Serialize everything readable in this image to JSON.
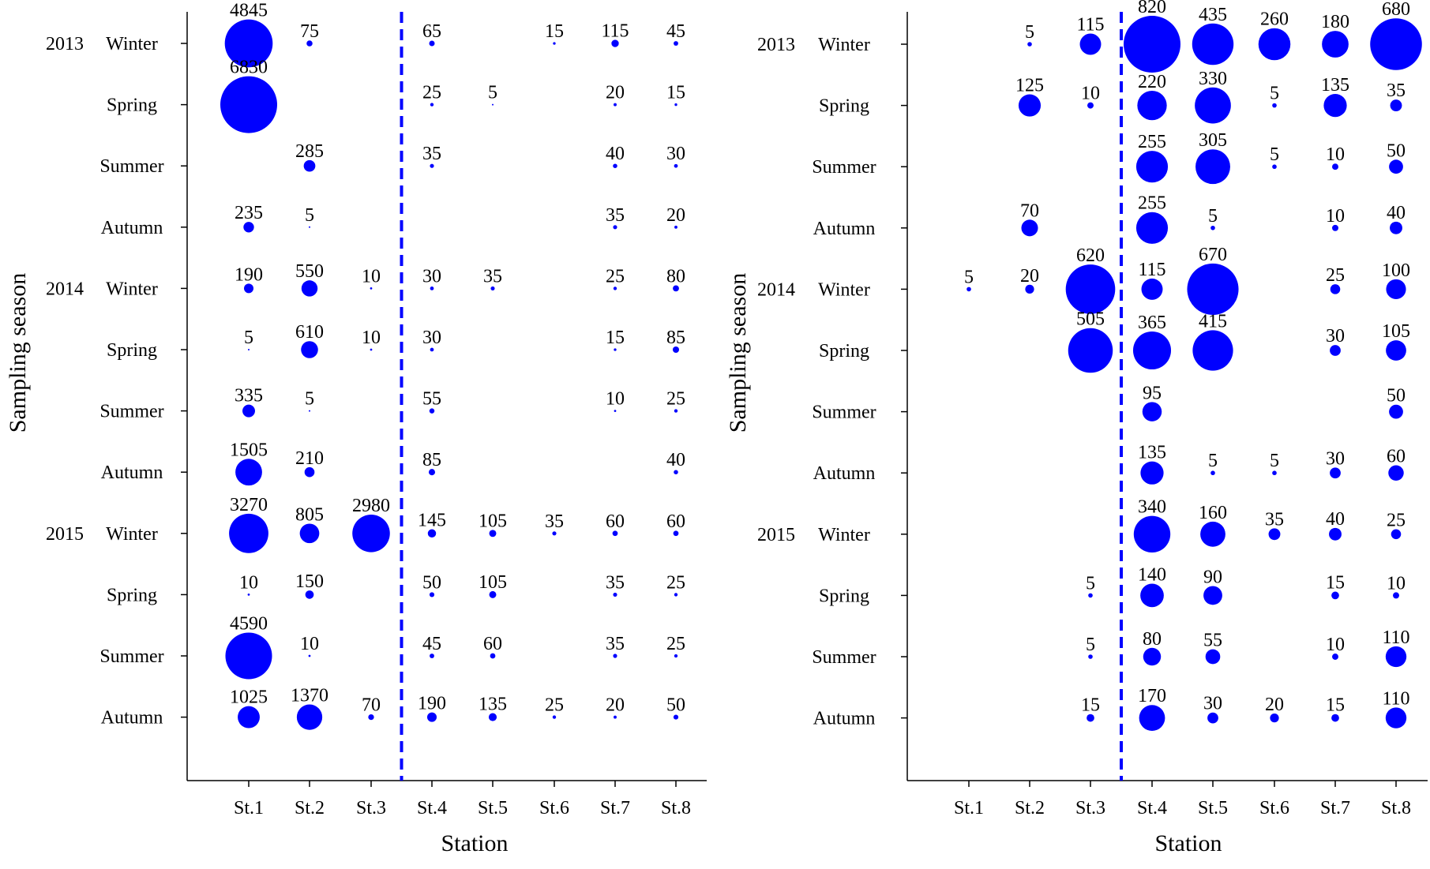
{
  "chart_data": [
    {
      "type": "scatter",
      "title": "",
      "xlabel": "Station",
      "ylabel": "Sampling season",
      "categories": [
        "St.1",
        "St.2",
        "St.3",
        "St.4",
        "St.5",
        "St.6",
        "St.7",
        "St.8"
      ],
      "seasons": [
        {
          "year": "2013",
          "season": "Winter"
        },
        {
          "year": "",
          "season": "Spring"
        },
        {
          "year": "",
          "season": "Summer"
        },
        {
          "year": "",
          "season": "Autumn"
        },
        {
          "year": "2014",
          "season": "Winter"
        },
        {
          "year": "",
          "season": "Spring"
        },
        {
          "year": "",
          "season": "Summer"
        },
        {
          "year": "",
          "season": "Autumn"
        },
        {
          "year": "2015",
          "season": "Winter"
        },
        {
          "year": "",
          "season": "Spring"
        },
        {
          "year": "",
          "season": "Summer"
        },
        {
          "year": "",
          "season": "Autumn"
        }
      ],
      "divider_between": [
        "St.3",
        "St.4"
      ],
      "bubble_color": "#0000ff",
      "max_value": 6830,
      "points": [
        {
          "station": "St.1",
          "season_index": 0,
          "value": 4845
        },
        {
          "station": "St.2",
          "season_index": 0,
          "value": 75
        },
        {
          "station": "St.4",
          "season_index": 0,
          "value": 65
        },
        {
          "station": "St.6",
          "season_index": 0,
          "value": 15
        },
        {
          "station": "St.7",
          "season_index": 0,
          "value": 115
        },
        {
          "station": "St.8",
          "season_index": 0,
          "value": 45
        },
        {
          "station": "St.1",
          "season_index": 1,
          "value": 6830
        },
        {
          "station": "St.4",
          "season_index": 1,
          "value": 25
        },
        {
          "station": "St.5",
          "season_index": 1,
          "value": 5
        },
        {
          "station": "St.7",
          "season_index": 1,
          "value": 20
        },
        {
          "station": "St.8",
          "season_index": 1,
          "value": 15
        },
        {
          "station": "St.2",
          "season_index": 2,
          "value": 285
        },
        {
          "station": "St.4",
          "season_index": 2,
          "value": 35
        },
        {
          "station": "St.7",
          "season_index": 2,
          "value": 40
        },
        {
          "station": "St.8",
          "season_index": 2,
          "value": 30
        },
        {
          "station": "St.1",
          "season_index": 3,
          "value": 235
        },
        {
          "station": "St.2",
          "season_index": 3,
          "value": 5
        },
        {
          "station": "St.7",
          "season_index": 3,
          "value": 35
        },
        {
          "station": "St.8",
          "season_index": 3,
          "value": 20
        },
        {
          "station": "St.1",
          "season_index": 4,
          "value": 190
        },
        {
          "station": "St.2",
          "season_index": 4,
          "value": 550
        },
        {
          "station": "St.3",
          "season_index": 4,
          "value": 10
        },
        {
          "station": "St.4",
          "season_index": 4,
          "value": 30
        },
        {
          "station": "St.5",
          "season_index": 4,
          "value": 35
        },
        {
          "station": "St.7",
          "season_index": 4,
          "value": 25
        },
        {
          "station": "St.8",
          "season_index": 4,
          "value": 80
        },
        {
          "station": "St.1",
          "season_index": 5,
          "value": 5
        },
        {
          "station": "St.2",
          "season_index": 5,
          "value": 610
        },
        {
          "station": "St.3",
          "season_index": 5,
          "value": 10
        },
        {
          "station": "St.4",
          "season_index": 5,
          "value": 30
        },
        {
          "station": "St.7",
          "season_index": 5,
          "value": 15
        },
        {
          "station": "St.8",
          "season_index": 5,
          "value": 85
        },
        {
          "station": "St.1",
          "season_index": 6,
          "value": 335
        },
        {
          "station": "St.2",
          "season_index": 6,
          "value": 5
        },
        {
          "station": "St.4",
          "season_index": 6,
          "value": 55
        },
        {
          "station": "St.7",
          "season_index": 6,
          "value": 10
        },
        {
          "station": "St.8",
          "season_index": 6,
          "value": 25
        },
        {
          "station": "St.1",
          "season_index": 7,
          "value": 1505
        },
        {
          "station": "St.2",
          "season_index": 7,
          "value": 210
        },
        {
          "station": "St.4",
          "season_index": 7,
          "value": 85
        },
        {
          "station": "St.8",
          "season_index": 7,
          "value": 40
        },
        {
          "station": "St.1",
          "season_index": 8,
          "value": 3270
        },
        {
          "station": "St.2",
          "season_index": 8,
          "value": 805
        },
        {
          "station": "St.3",
          "season_index": 8,
          "value": 2980
        },
        {
          "station": "St.4",
          "season_index": 8,
          "value": 145
        },
        {
          "station": "St.5",
          "season_index": 8,
          "value": 105
        },
        {
          "station": "St.6",
          "season_index": 8,
          "value": 35
        },
        {
          "station": "St.7",
          "season_index": 8,
          "value": 60
        },
        {
          "station": "St.8",
          "season_index": 8,
          "value": 60
        },
        {
          "station": "St.1",
          "season_index": 9,
          "value": 10
        },
        {
          "station": "St.2",
          "season_index": 9,
          "value": 150
        },
        {
          "station": "St.4",
          "season_index": 9,
          "value": 50
        },
        {
          "station": "St.5",
          "season_index": 9,
          "value": 105
        },
        {
          "station": "St.7",
          "season_index": 9,
          "value": 35
        },
        {
          "station": "St.8",
          "season_index": 9,
          "value": 25
        },
        {
          "station": "St.1",
          "season_index": 10,
          "value": 4590
        },
        {
          "station": "St.2",
          "season_index": 10,
          "value": 10
        },
        {
          "station": "St.4",
          "season_index": 10,
          "value": 45
        },
        {
          "station": "St.5",
          "season_index": 10,
          "value": 60
        },
        {
          "station": "St.7",
          "season_index": 10,
          "value": 35
        },
        {
          "station": "St.8",
          "season_index": 10,
          "value": 25
        },
        {
          "station": "St.1",
          "season_index": 11,
          "value": 1025
        },
        {
          "station": "St.2",
          "season_index": 11,
          "value": 1370
        },
        {
          "station": "St.3",
          "season_index": 11,
          "value": 70
        },
        {
          "station": "St.4",
          "season_index": 11,
          "value": 190
        },
        {
          "station": "St.5",
          "season_index": 11,
          "value": 135
        },
        {
          "station": "St.6",
          "season_index": 11,
          "value": 25
        },
        {
          "station": "St.7",
          "season_index": 11,
          "value": 20
        },
        {
          "station": "St.8",
          "season_index": 11,
          "value": 50
        }
      ]
    },
    {
      "type": "scatter",
      "title": "",
      "xlabel": "Station",
      "ylabel": "Sampling season",
      "categories": [
        "St.1",
        "St.2",
        "St.3",
        "St.4",
        "St.5",
        "St.6",
        "St.7",
        "St.8"
      ],
      "seasons": [
        {
          "year": "2013",
          "season": "Winter"
        },
        {
          "year": "",
          "season": "Spring"
        },
        {
          "year": "",
          "season": "Summer"
        },
        {
          "year": "",
          "season": "Autumn"
        },
        {
          "year": "2014",
          "season": "Winter"
        },
        {
          "year": "",
          "season": "Spring"
        },
        {
          "year": "",
          "season": "Summer"
        },
        {
          "year": "",
          "season": "Autumn"
        },
        {
          "year": "2015",
          "season": "Winter"
        },
        {
          "year": "",
          "season": "Spring"
        },
        {
          "year": "",
          "season": "Summer"
        },
        {
          "year": "",
          "season": "Autumn"
        }
      ],
      "divider_between": [
        "St.3",
        "St.4"
      ],
      "bubble_color": "#0000ff",
      "max_value": 820,
      "points": [
        {
          "station": "St.2",
          "season_index": 0,
          "value": 5
        },
        {
          "station": "St.3",
          "season_index": 0,
          "value": 115
        },
        {
          "station": "St.4",
          "season_index": 0,
          "value": 820
        },
        {
          "station": "St.5",
          "season_index": 0,
          "value": 435
        },
        {
          "station": "St.6",
          "season_index": 0,
          "value": 260
        },
        {
          "station": "St.7",
          "season_index": 0,
          "value": 180
        },
        {
          "station": "St.8",
          "season_index": 0,
          "value": 680
        },
        {
          "station": "St.2",
          "season_index": 1,
          "value": 125
        },
        {
          "station": "St.3",
          "season_index": 1,
          "value": 10
        },
        {
          "station": "St.4",
          "season_index": 1,
          "value": 220
        },
        {
          "station": "St.5",
          "season_index": 1,
          "value": 330
        },
        {
          "station": "St.6",
          "season_index": 1,
          "value": 5
        },
        {
          "station": "St.7",
          "season_index": 1,
          "value": 135
        },
        {
          "station": "St.8",
          "season_index": 1,
          "value": 35
        },
        {
          "station": "St.4",
          "season_index": 2,
          "value": 255
        },
        {
          "station": "St.5",
          "season_index": 2,
          "value": 305
        },
        {
          "station": "St.6",
          "season_index": 2,
          "value": 5
        },
        {
          "station": "St.7",
          "season_index": 2,
          "value": 10
        },
        {
          "station": "St.8",
          "season_index": 2,
          "value": 50
        },
        {
          "station": "St.2",
          "season_index": 3,
          "value": 70
        },
        {
          "station": "St.4",
          "season_index": 3,
          "value": 255
        },
        {
          "station": "St.5",
          "season_index": 3,
          "value": 5
        },
        {
          "station": "St.7",
          "season_index": 3,
          "value": 10
        },
        {
          "station": "St.8",
          "season_index": 3,
          "value": 40
        },
        {
          "station": "St.1",
          "season_index": 4,
          "value": 5
        },
        {
          "station": "St.2",
          "season_index": 4,
          "value": 20
        },
        {
          "station": "St.3",
          "season_index": 4,
          "value": 620
        },
        {
          "station": "St.4",
          "season_index": 4,
          "value": 115
        },
        {
          "station": "St.5",
          "season_index": 4,
          "value": 670
        },
        {
          "station": "St.7",
          "season_index": 4,
          "value": 25
        },
        {
          "station": "St.8",
          "season_index": 4,
          "value": 100
        },
        {
          "station": "St.3",
          "season_index": 5,
          "value": 505
        },
        {
          "station": "St.4",
          "season_index": 5,
          "value": 365
        },
        {
          "station": "St.5",
          "season_index": 5,
          "value": 415
        },
        {
          "station": "St.7",
          "season_index": 5,
          "value": 30
        },
        {
          "station": "St.8",
          "season_index": 5,
          "value": 105
        },
        {
          "station": "St.4",
          "season_index": 6,
          "value": 95
        },
        {
          "station": "St.8",
          "season_index": 6,
          "value": 50
        },
        {
          "station": "St.4",
          "season_index": 7,
          "value": 135
        },
        {
          "station": "St.5",
          "season_index": 7,
          "value": 5
        },
        {
          "station": "St.6",
          "season_index": 7,
          "value": 5
        },
        {
          "station": "St.7",
          "season_index": 7,
          "value": 30
        },
        {
          "station": "St.8",
          "season_index": 7,
          "value": 60
        },
        {
          "station": "St.4",
          "season_index": 8,
          "value": 340
        },
        {
          "station": "St.5",
          "season_index": 8,
          "value": 160
        },
        {
          "station": "St.6",
          "season_index": 8,
          "value": 35
        },
        {
          "station": "St.7",
          "season_index": 8,
          "value": 40
        },
        {
          "station": "St.8",
          "season_index": 8,
          "value": 25
        },
        {
          "station": "St.3",
          "season_index": 9,
          "value": 5
        },
        {
          "station": "St.4",
          "season_index": 9,
          "value": 140
        },
        {
          "station": "St.5",
          "season_index": 9,
          "value": 90
        },
        {
          "station": "St.7",
          "season_index": 9,
          "value": 15
        },
        {
          "station": "St.8",
          "season_index": 9,
          "value": 10
        },
        {
          "station": "St.3",
          "season_index": 10,
          "value": 5
        },
        {
          "station": "St.4",
          "season_index": 10,
          "value": 80
        },
        {
          "station": "St.5",
          "season_index": 10,
          "value": 55
        },
        {
          "station": "St.7",
          "season_index": 10,
          "value": 10
        },
        {
          "station": "St.8",
          "season_index": 10,
          "value": 110
        },
        {
          "station": "St.3",
          "season_index": 11,
          "value": 15
        },
        {
          "station": "St.4",
          "season_index": 11,
          "value": 170
        },
        {
          "station": "St.5",
          "season_index": 11,
          "value": 30
        },
        {
          "station": "St.6",
          "season_index": 11,
          "value": 20
        },
        {
          "station": "St.7",
          "season_index": 11,
          "value": 15
        },
        {
          "station": "St.8",
          "season_index": 11,
          "value": 110
        }
      ]
    }
  ]
}
